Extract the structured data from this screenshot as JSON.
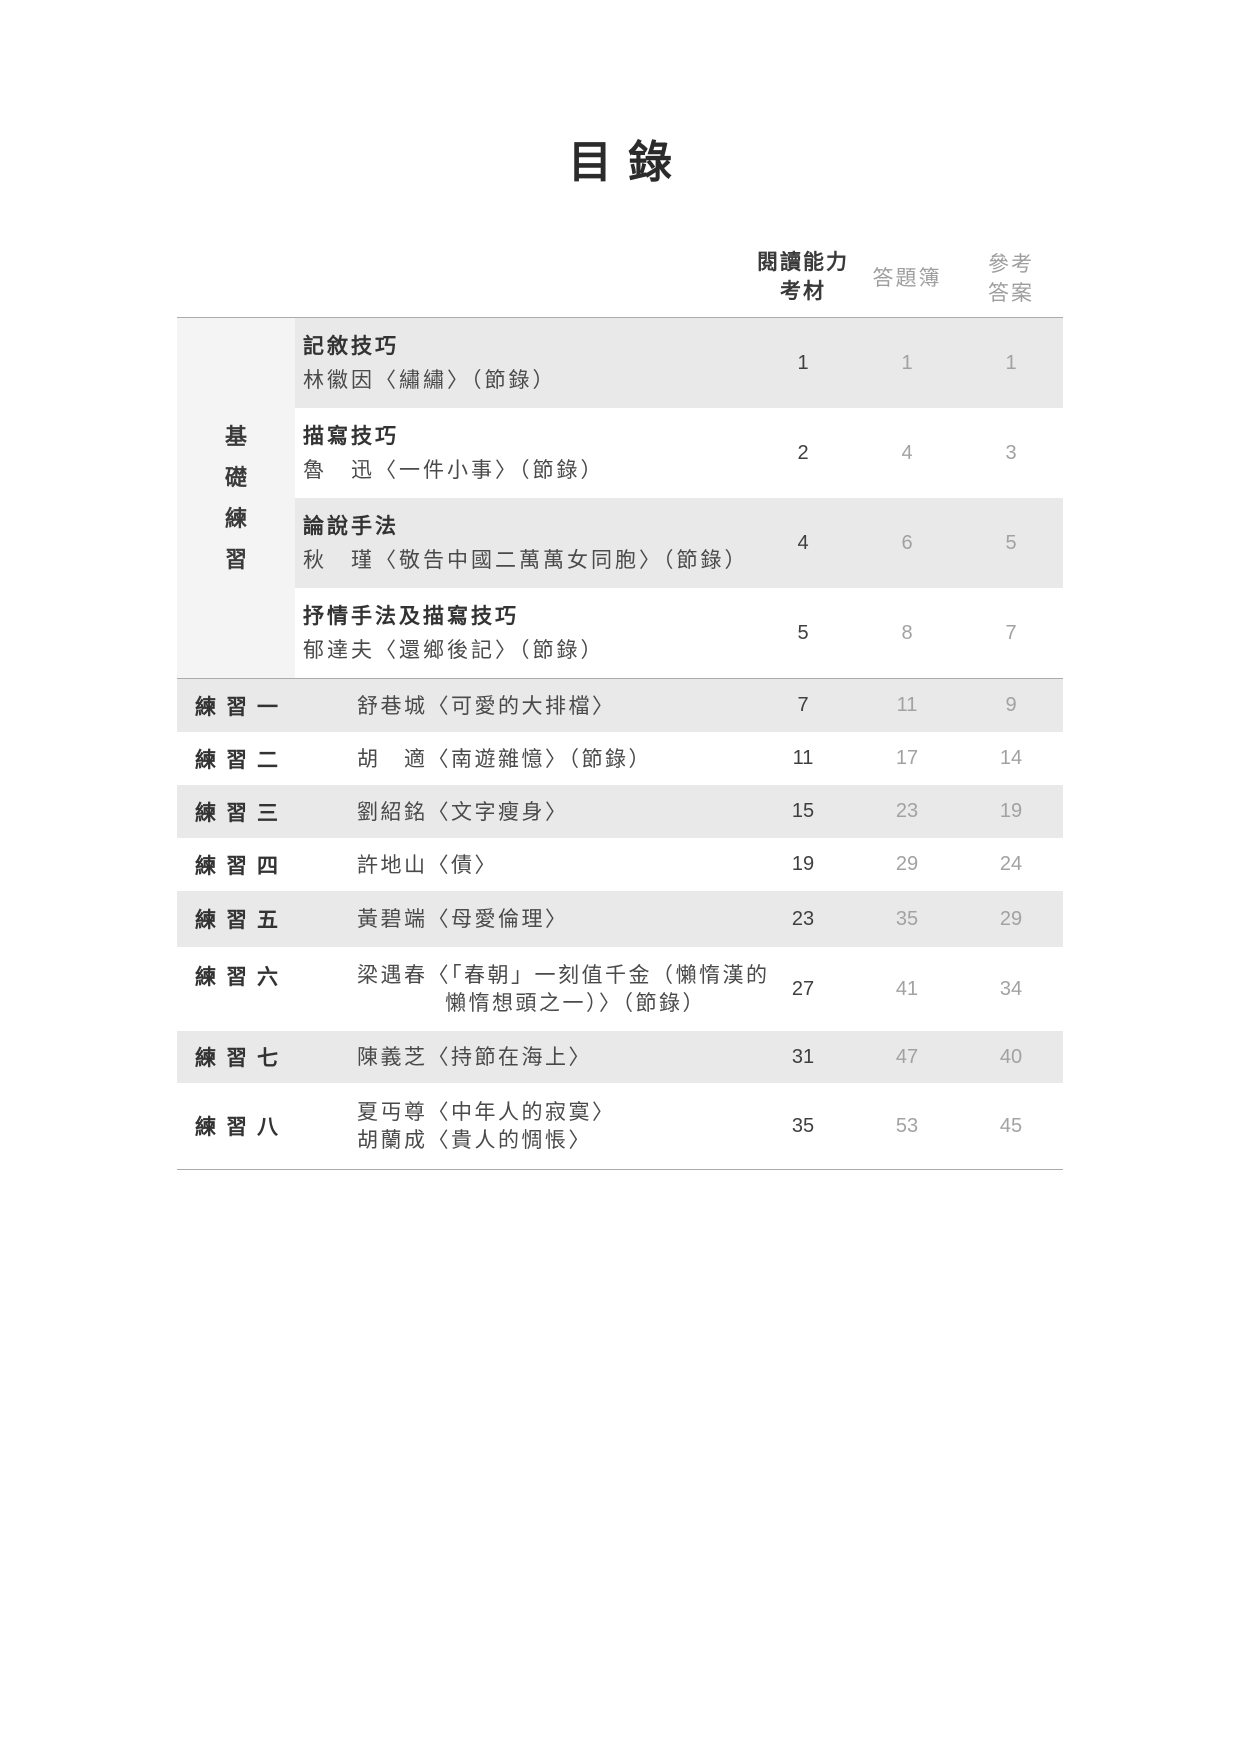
{
  "page_title": "目錄",
  "toc": {
    "headers": {
      "reading": {
        "line1": "閱讀能力",
        "line2": "考材"
      },
      "answer_book": {
        "label": "答題簿"
      },
      "ref_answer": {
        "line1": "參考",
        "line2": "答案"
      }
    },
    "group_label": {
      "text": "基礎練習",
      "chars": [
        "基",
        "礎",
        "練",
        "習"
      ]
    },
    "basic_rows": [
      {
        "skill": "記敘技巧",
        "source": "林徽因〈繡繡〉（節錄）",
        "pages": {
          "reading": "1",
          "answer_book": "1",
          "ref_answer": "1"
        }
      },
      {
        "skill": "描寫技巧",
        "source": "魯　迅〈一件小事〉（節錄）",
        "pages": {
          "reading": "2",
          "answer_book": "4",
          "ref_answer": "3"
        }
      },
      {
        "skill": "論說手法",
        "source": "秋　瑾〈敬告中國二萬萬女同胞〉（節錄）",
        "pages": {
          "reading": "4",
          "answer_book": "6",
          "ref_answer": "5"
        }
      },
      {
        "skill": "抒情手法及描寫技巧",
        "source": "郁達夫〈還鄉後記〉（節錄）",
        "pages": {
          "reading": "5",
          "answer_book": "8",
          "ref_answer": "7"
        }
      }
    ],
    "practice_rows": [
      {
        "label": "練習一",
        "line1": "舒巷城〈可愛的大排檔〉",
        "pages": {
          "reading": "7",
          "answer_book": "11",
          "ref_answer": "9"
        }
      },
      {
        "label": "練習二",
        "line1": "胡　適〈南遊雜憶〉（節錄）",
        "pages": {
          "reading": "11",
          "answer_book": "17",
          "ref_answer": "14"
        }
      },
      {
        "label": "練習三",
        "line1": "劉紹銘〈文字瘦身〉",
        "pages": {
          "reading": "15",
          "answer_book": "23",
          "ref_answer": "19"
        }
      },
      {
        "label": "練習四",
        "line1": "許地山〈債〉",
        "pages": {
          "reading": "19",
          "answer_book": "29",
          "ref_answer": "24"
        }
      },
      {
        "label": "練習五",
        "line1": "黃碧端〈母愛倫理〉",
        "pages": {
          "reading": "23",
          "answer_book": "35",
          "ref_answer": "29"
        }
      },
      {
        "label": "練習六",
        "line1": "梁遇春〈「春朝」一刻值千金（懶惰漢的",
        "line2": "懶惰想頭之一）〉（節錄）",
        "pages": {
          "reading": "27",
          "answer_book": "41",
          "ref_answer": "34"
        }
      },
      {
        "label": "練習七",
        "line1": "陳義芝〈持節在海上〉",
        "pages": {
          "reading": "31",
          "answer_book": "47",
          "ref_answer": "40"
        }
      },
      {
        "label": "練習八",
        "line1": "夏丏尊〈中年人的寂寞〉",
        "line2": "胡蘭成〈貴人的惆悵〉",
        "pages": {
          "reading": "35",
          "answer_book": "53",
          "ref_answer": "45"
        }
      }
    ],
    "colors": {
      "row_stripe": "#e9e9e9",
      "group_column_bg": "#f4f4f4",
      "text_dark": "#3a3a3a",
      "text_gray": "#9e9e9e",
      "border": "#ababab"
    }
  }
}
